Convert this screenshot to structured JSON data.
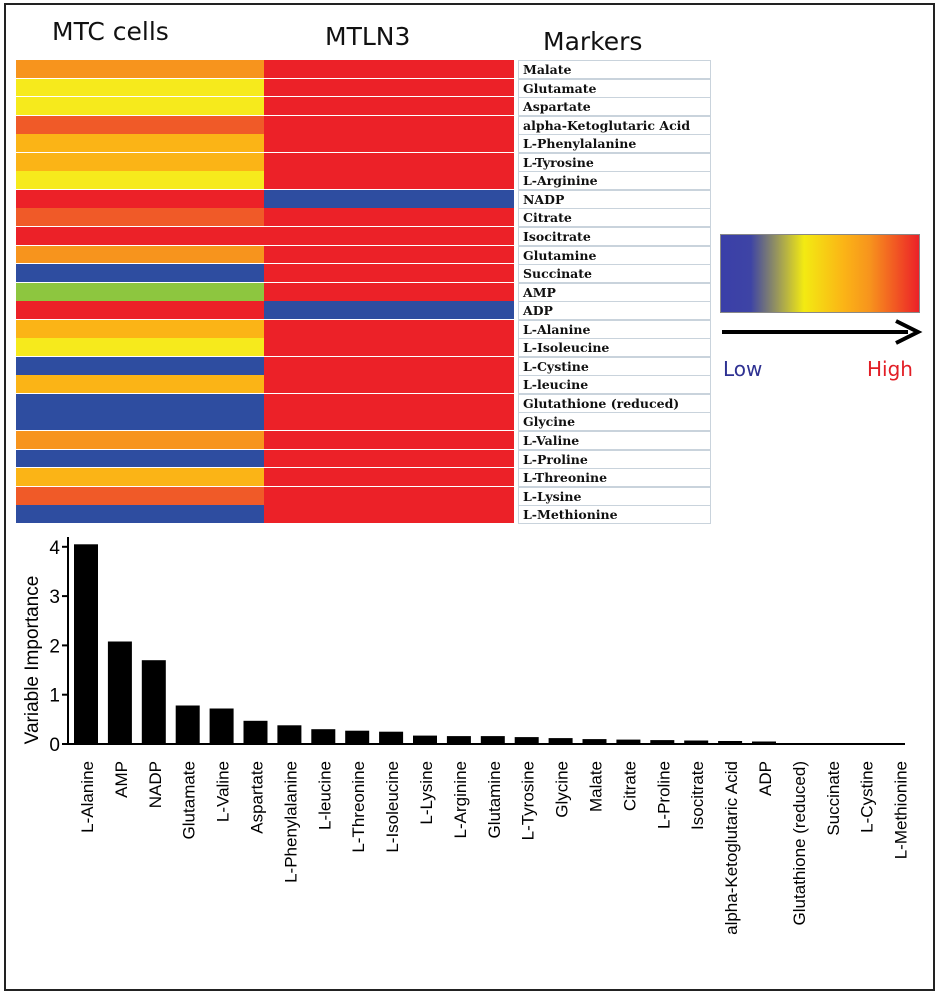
{
  "heatmap": {
    "headers": {
      "col1": "MTC cells",
      "col2": "MTLN3",
      "col3": "Markers"
    },
    "colors": {
      "red": "#ec2128",
      "orange_red": "#f05a28",
      "orange": "#f7941d",
      "amber": "#fbb416",
      "yellow": "#f6ea1c",
      "green": "#8dc63f",
      "blue": "#2e4da0"
    },
    "rows": [
      {
        "marker": "Malate",
        "mtc": "orange",
        "mtln3": "red"
      },
      {
        "marker": "Glutamate",
        "mtc": "yellow",
        "mtln3": "red"
      },
      {
        "marker": "Aspartate",
        "mtc": "yellow",
        "mtln3": "red"
      },
      {
        "marker": "alpha-Ketoglutaric Acid",
        "mtc": "orange_red",
        "mtln3": "red"
      },
      {
        "marker": "L-Phenylalanine",
        "mtc": "amber",
        "mtln3": "red"
      },
      {
        "marker": "L-Tyrosine",
        "mtc": "amber",
        "mtln3": "red"
      },
      {
        "marker": "L-Arginine",
        "mtc": "yellow",
        "mtln3": "red"
      },
      {
        "marker": "NADP",
        "mtc": "red",
        "mtln3": "blue"
      },
      {
        "marker": "Citrate",
        "mtc": "orange_red",
        "mtln3": "red"
      },
      {
        "marker": "Isocitrate",
        "mtc": "red",
        "mtln3": "red"
      },
      {
        "marker": "Glutamine",
        "mtc": "orange",
        "mtln3": "red"
      },
      {
        "marker": "Succinate",
        "mtc": "blue",
        "mtln3": "red"
      },
      {
        "marker": "AMP",
        "mtc": "green",
        "mtln3": "red"
      },
      {
        "marker": "ADP",
        "mtc": "red",
        "mtln3": "blue"
      },
      {
        "marker": "L-Alanine",
        "mtc": "amber",
        "mtln3": "red"
      },
      {
        "marker": "L-Isoleucine",
        "mtc": "yellow",
        "mtln3": "red"
      },
      {
        "marker": "L-Cystine",
        "mtc": "blue",
        "mtln3": "red"
      },
      {
        "marker": "L-leucine",
        "mtc": "amber",
        "mtln3": "red"
      },
      {
        "marker": "Glutathione (reduced)",
        "mtc": "blue",
        "mtln3": "red"
      },
      {
        "marker": "Glycine",
        "mtc": "blue",
        "mtln3": "red"
      },
      {
        "marker": "L-Valine",
        "mtc": "orange",
        "mtln3": "red"
      },
      {
        "marker": "L-Proline",
        "mtc": "blue",
        "mtln3": "red"
      },
      {
        "marker": "L-Threonine",
        "mtc": "amber",
        "mtln3": "red"
      },
      {
        "marker": "L-Lysine",
        "mtc": "orange_red",
        "mtln3": "red"
      },
      {
        "marker": "L-Methionine",
        "mtc": "blue",
        "mtln3": "red"
      }
    ]
  },
  "legend": {
    "low_label": "Low",
    "high_label": "High",
    "low_color": "#2e3192",
    "high_color": "#e21e26",
    "gradient": [
      "#3a3fa8",
      "#3e44a5",
      "#f3ea12",
      "#fbb416",
      "#f7941d",
      "#ec2128"
    ]
  },
  "chart_data": {
    "type": "bar",
    "ylabel": "Variable Importance",
    "xlabel": "",
    "ylim": [
      0,
      4.2
    ],
    "yticks": [
      0,
      1,
      2,
      3,
      4
    ],
    "bar_color": "#000000",
    "categories": [
      "L-Alanine",
      "AMP",
      "NADP",
      "Glutamate",
      "L-Valine",
      "Aspartate",
      "L-Phenylalanine",
      "L-leucine",
      "L-Threonine",
      "L-Isoleucine",
      "L-Lysine",
      "L-Arginine",
      "Glutamine",
      "L-Tyrosine",
      "Glycine",
      "Malate",
      "Citrate",
      "L-Proline",
      "Isocitrate",
      "alpha-Ketoglutaric Acid",
      "ADP",
      "Glutathione (reduced)",
      "Succinate",
      "L-Cystine",
      "L-Methionine"
    ],
    "values": [
      4.05,
      2.08,
      1.7,
      0.78,
      0.72,
      0.47,
      0.38,
      0.3,
      0.27,
      0.25,
      0.17,
      0.16,
      0.16,
      0.14,
      0.12,
      0.1,
      0.09,
      0.08,
      0.07,
      0.06,
      0.05,
      0.0,
      0.0,
      0.0,
      0.0
    ]
  }
}
